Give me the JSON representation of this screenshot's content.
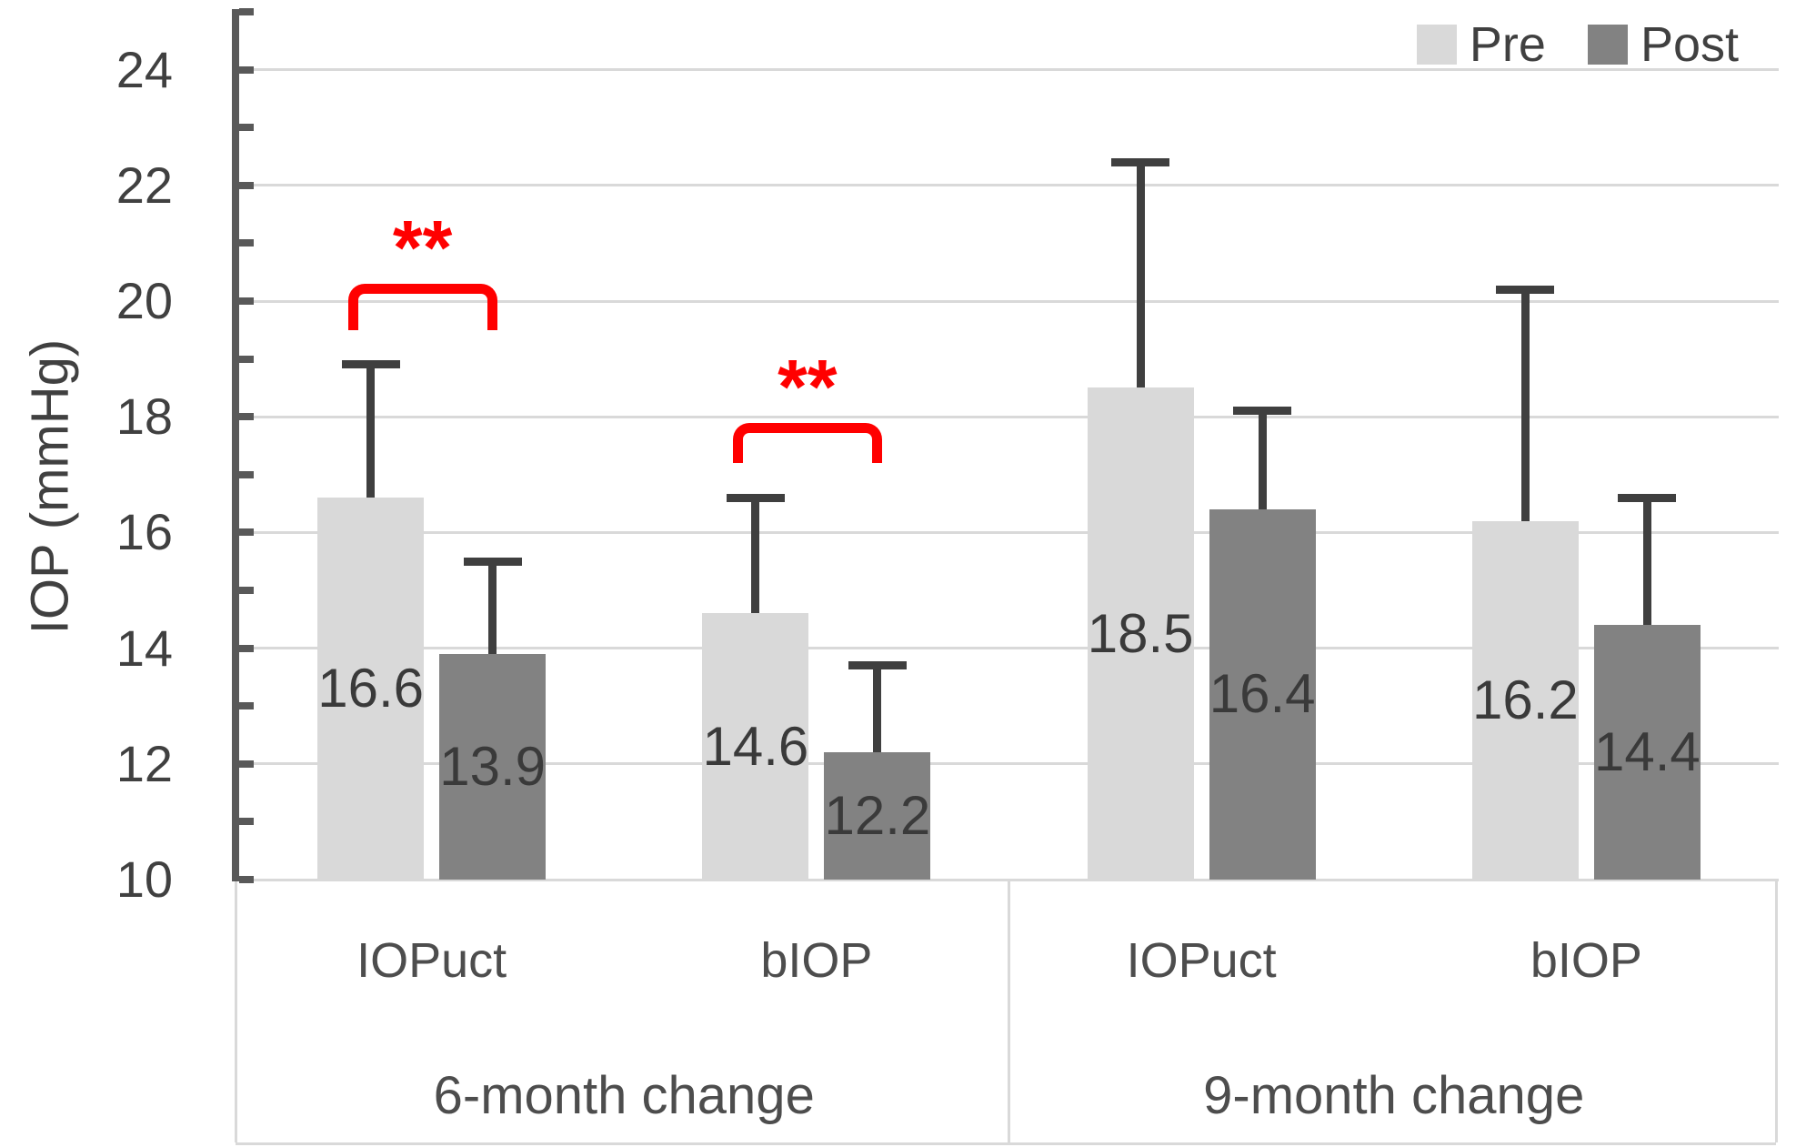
{
  "chart_data": {
    "type": "bar",
    "title": "",
    "ylabel": "IOP (mmHg)",
    "xlabel": "",
    "ylim": [
      10,
      25
    ],
    "yticks": [
      10,
      12,
      14,
      16,
      18,
      20,
      22,
      24
    ],
    "minor_tick_step": 1,
    "grid": true,
    "legend_position": "top-right",
    "groups": [
      {
        "label": "6-month change",
        "categories": [
          "IOPuct",
          "bIOP"
        ]
      },
      {
        "label": "9-month change",
        "categories": [
          "IOPuct",
          "bIOP"
        ]
      }
    ],
    "categories": [
      "IOPuct",
      "bIOP",
      "IOPuct",
      "bIOP"
    ],
    "series": [
      {
        "name": "Pre",
        "color": "#d9d9d9",
        "values": [
          16.6,
          14.6,
          18.5,
          16.2
        ],
        "error_upper": [
          2.3,
          2.0,
          3.9,
          4.0
        ]
      },
      {
        "name": "Post",
        "color": "#828282",
        "values": [
          13.9,
          12.2,
          16.4,
          14.4
        ],
        "error_upper": [
          1.6,
          1.5,
          1.7,
          2.2
        ]
      }
    ],
    "data_labels": {
      "show": true,
      "position": "inside-center"
    },
    "significance": [
      {
        "category_index": 0,
        "label": "**",
        "bracket_top": 20.3,
        "bracket_leg_bottom": 19.5,
        "color": "#ff0000"
      },
      {
        "category_index": 1,
        "label": "**",
        "bracket_top": 17.9,
        "bracket_leg_bottom": 17.2,
        "color": "#ff0000"
      }
    ]
  },
  "legend": {
    "entries": [
      {
        "label": "Pre",
        "color": "#d9d9d9"
      },
      {
        "label": "Post",
        "color": "#828282"
      }
    ]
  },
  "style": {
    "background": "#ffffff",
    "grid_color": "#d9d9d9",
    "axis_color": "#595959",
    "error_bar_color": "#3f3f3f",
    "text_color": "#404040",
    "category_text_color": "#4d4d4d",
    "significance_color": "#ff0000",
    "pre_bar_color": "#d9d9d9",
    "post_bar_color": "#828282"
  }
}
